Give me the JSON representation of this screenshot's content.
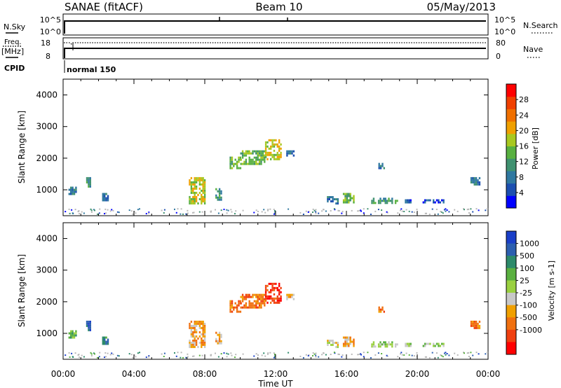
{
  "header": {
    "station": "SANAE (fitACF)",
    "beam": "Beam 10",
    "date": "05/May/2013"
  },
  "top_panels": {
    "nsky_label": "N.Sky",
    "nsky_ticks": [
      "10^5",
      "10^0"
    ],
    "nsearch_ticks": [
      "10^5",
      "10^0"
    ],
    "nsearch_label": "N.Search",
    "freq_label": "Freq.",
    "freq_unit": "[MHz]",
    "freq_ticks": [
      "18",
      "8"
    ],
    "nave_ticks": [
      "80",
      "0"
    ],
    "nave_label": "Nave",
    "cpid_label": "CPID",
    "cpid_value": "normal 150"
  },
  "colors": {
    "power": [
      "#0000ff",
      "#1c4fb0",
      "#2f78a0",
      "#3f9170",
      "#58b040",
      "#a8c820",
      "#f0a000",
      "#f07000",
      "#f04000",
      "#ff0000"
    ],
    "velocity": [
      "#1a3fc8",
      "#2c5fb0",
      "#2c8a6a",
      "#5ab040",
      "#9ad040",
      "#c8c8c8",
      "#f0a000",
      "#f07010",
      "#f04010",
      "#ff0000"
    ],
    "ground": "#b8b8b8"
  },
  "chart_data": [
    {
      "type": "heatmap",
      "name": "power",
      "xlabel": "",
      "ylabel": "Slant Range [km]",
      "xlim": [
        0,
        24
      ],
      "ylim": [
        180,
        4500
      ],
      "xticks": [
        "00:00",
        "04:00",
        "08:00",
        "12:00",
        "16:00",
        "20:00",
        "00:00"
      ],
      "yticks": [
        1000,
        2000,
        3000,
        4000
      ],
      "colorbar": {
        "label": "Power [dB]",
        "ticks": [
          4,
          8,
          12,
          16,
          20,
          24,
          28
        ],
        "range": [
          0,
          32
        ]
      },
      "echo_regions": [
        {
          "t": [
            0.3,
            0.75
          ],
          "r": [
            900,
            1100
          ],
          "level": 2
        },
        {
          "t": [
            1.3,
            1.5
          ],
          "r": [
            1100,
            1400
          ],
          "level": 3
        },
        {
          "t": [
            2.2,
            2.5
          ],
          "r": [
            650,
            900
          ],
          "level": 2
        },
        {
          "t": [
            7.1,
            8.0
          ],
          "r": [
            600,
            1400
          ],
          "level": 5
        },
        {
          "t": [
            8.6,
            8.9
          ],
          "r": [
            700,
            1050
          ],
          "level": 3
        },
        {
          "t": [
            9.4,
            10.0
          ],
          "r": [
            1700,
            2050
          ],
          "level": 4
        },
        {
          "t": [
            10.0,
            11.4
          ],
          "r": [
            1850,
            2250
          ],
          "level": 4
        },
        {
          "t": [
            11.4,
            12.3
          ],
          "r": [
            2000,
            2600
          ],
          "level": 5
        },
        {
          "t": [
            12.6,
            13.0
          ],
          "r": [
            2100,
            2250
          ],
          "level": 2
        },
        {
          "t": [
            14.9,
            15.5
          ],
          "r": [
            600,
            800
          ],
          "level": 2
        },
        {
          "t": [
            15.8,
            16.4
          ],
          "r": [
            600,
            900
          ],
          "level": 4
        },
        {
          "t": [
            17.4,
            18.9
          ],
          "r": [
            600,
            750
          ],
          "level": 3
        },
        {
          "t": [
            17.8,
            18.1
          ],
          "r": [
            1700,
            1850
          ],
          "level": 2
        },
        {
          "t": [
            19.3,
            19.6
          ],
          "r": [
            600,
            700
          ],
          "level": 1
        },
        {
          "t": [
            20.3,
            21.5
          ],
          "r": [
            600,
            700
          ],
          "level": 1
        },
        {
          "t": [
            23.0,
            23.5
          ],
          "r": [
            1150,
            1400
          ],
          "level": 2
        }
      ]
    },
    {
      "type": "heatmap",
      "name": "velocity",
      "xlabel": "Time UT",
      "ylabel": "Slant Range [km]",
      "xlim": [
        0,
        24
      ],
      "ylim": [
        180,
        4500
      ],
      "xticks": [
        "00:00",
        "04:00",
        "08:00",
        "12:00",
        "16:00",
        "20:00",
        "00:00"
      ],
      "yticks": [
        1000,
        2000,
        3000,
        4000
      ],
      "colorbar": {
        "label": "Velocity [m s-1]",
        "ticks": [
          "1000",
          "500",
          "100",
          "25",
          "-25",
          "-100",
          "-500",
          "-1000"
        ]
      },
      "echo_regions": [
        {
          "t": [
            0.3,
            0.75
          ],
          "r": [
            900,
            1100
          ],
          "level": 3
        },
        {
          "t": [
            1.3,
            1.5
          ],
          "r": [
            1100,
            1400
          ],
          "level": 1
        },
        {
          "t": [
            2.2,
            2.5
          ],
          "r": [
            650,
            900
          ],
          "level": 2
        },
        {
          "t": [
            7.1,
            8.0
          ],
          "r": [
            600,
            1400
          ],
          "level": 6
        },
        {
          "t": [
            8.6,
            8.9
          ],
          "r": [
            700,
            1050
          ],
          "level": 6
        },
        {
          "t": [
            9.4,
            10.0
          ],
          "r": [
            1700,
            2050
          ],
          "level": 7
        },
        {
          "t": [
            10.0,
            11.4
          ],
          "r": [
            1850,
            2250
          ],
          "level": 7
        },
        {
          "t": [
            11.4,
            12.3
          ],
          "r": [
            2000,
            2600
          ],
          "level": 8
        },
        {
          "t": [
            12.6,
            13.0
          ],
          "r": [
            2100,
            2250
          ],
          "level": 6
        },
        {
          "t": [
            14.9,
            15.5
          ],
          "r": [
            600,
            800
          ],
          "level": 5
        },
        {
          "t": [
            15.8,
            16.4
          ],
          "r": [
            600,
            900
          ],
          "level": 6
        },
        {
          "t": [
            17.4,
            18.9
          ],
          "r": [
            600,
            750
          ],
          "level": 4
        },
        {
          "t": [
            17.8,
            18.1
          ],
          "r": [
            1700,
            1850
          ],
          "level": 7
        },
        {
          "t": [
            19.3,
            19.6
          ],
          "r": [
            600,
            700
          ],
          "level": 4
        },
        {
          "t": [
            20.3,
            21.5
          ],
          "r": [
            600,
            700
          ],
          "level": 4
        },
        {
          "t": [
            23.0,
            23.5
          ],
          "r": [
            1150,
            1400
          ],
          "level": 7
        }
      ]
    }
  ]
}
